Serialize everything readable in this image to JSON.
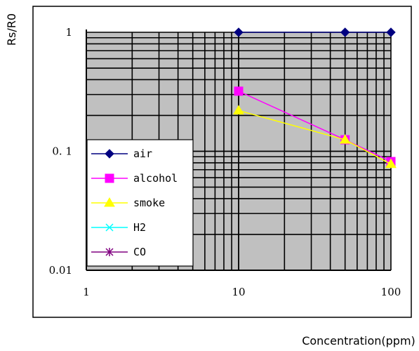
{
  "chart_data": {
    "type": "line",
    "x_scale": "log",
    "y_scale": "log",
    "xlabel": "Concentration(ppm)",
    "ylabel": "Rs/R0",
    "xlim": [
      1,
      100
    ],
    "ylim": [
      0.01,
      1
    ],
    "x_tick_labels": [
      "1",
      "10",
      "100"
    ],
    "y_tick_labels": [
      "0.01",
      "0. 1",
      "1"
    ],
    "grid": true,
    "plot_background": "#c0c0c0",
    "legend_position": "left",
    "series": [
      {
        "name": "air",
        "color": "#000080",
        "marker": "diamond",
        "points": [
          [
            10,
            1
          ],
          [
            50,
            1
          ],
          [
            100,
            1
          ]
        ]
      },
      {
        "name": "alcohol",
        "color": "#ff00ff",
        "marker": "square",
        "points": [
          [
            10,
            0.32
          ],
          [
            50,
            0.125
          ],
          [
            100,
            0.082
          ]
        ]
      },
      {
        "name": "smoke",
        "color": "#ffff00",
        "marker": "triangle",
        "points": [
          [
            10,
            0.22
          ],
          [
            50,
            0.125
          ],
          [
            100,
            0.078
          ]
        ]
      },
      {
        "name": "H2",
        "color": "#00ffff",
        "marker": "x",
        "points": []
      },
      {
        "name": "CO",
        "color": "#800080",
        "marker": "star",
        "points": []
      }
    ]
  }
}
